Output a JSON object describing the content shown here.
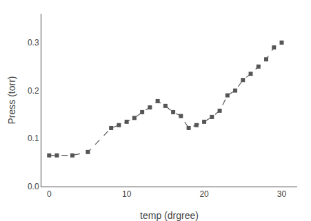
{
  "chart_data": {
    "type": "line",
    "xlabel": "temp (drgree)",
    "ylabel": "Press (torr)",
    "x": [
      0,
      1,
      3,
      5,
      8,
      9,
      10,
      11,
      12,
      13,
      14,
      15,
      16,
      17,
      18,
      19,
      20,
      21,
      22,
      23,
      24,
      25,
      26,
      27,
      28,
      29,
      30
    ],
    "values": [
      0.065,
      0.065,
      0.065,
      0.072,
      0.122,
      0.128,
      0.135,
      0.143,
      0.155,
      0.165,
      0.178,
      0.168,
      0.155,
      0.147,
      0.122,
      0.128,
      0.135,
      0.145,
      0.158,
      0.19,
      0.2,
      0.222,
      0.235,
      0.25,
      0.265,
      0.29,
      0.3
    ],
    "color": "#555555",
    "marker": "square",
    "line_style": "dashed",
    "xlim": [
      -1,
      32
    ],
    "ylim": [
      0.0,
      0.36
    ],
    "xticks": [
      0,
      10,
      20,
      30
    ],
    "yticks": [
      {
        "value": 0.0,
        "label": "0.0"
      },
      0.1,
      0.2,
      0.3
    ],
    "grid": false
  }
}
